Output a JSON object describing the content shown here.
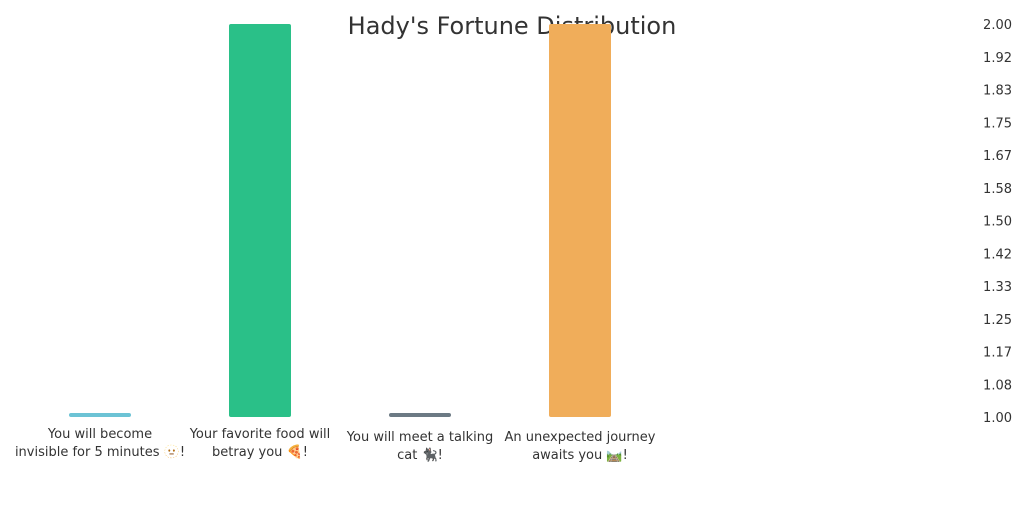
{
  "chart_data": {
    "type": "bar",
    "title": "Hady's Fortune Distribution",
    "categories": [
      "You will become invisible for 5 minutes 🫥!",
      "Your favorite food will betray you 🍕!",
      "You will meet a talking cat 🐈‍⬛!",
      "An unexpected journey awaits you 🛤️!"
    ],
    "category_lines": [
      [
        "You will become",
        "invisible for 5 minutes 🫥!"
      ],
      [
        "Your favorite food will",
        "betray you 🍕!"
      ],
      [
        "You will meet a talking",
        "cat 🐈‍⬛!"
      ],
      [
        "An unexpected journey",
        "awaits you 🛤️!"
      ]
    ],
    "values": [
      1,
      2,
      1,
      2
    ],
    "colors": [
      "#6cc3d5",
      "#2ac088",
      "#6c7a84",
      "#f0ad5a"
    ],
    "ylim": [
      1,
      2
    ],
    "yticks": [
      "1.00",
      "1.08",
      "1.17",
      "1.25",
      "1.33",
      "1.42",
      "1.50",
      "1.58",
      "1.67",
      "1.75",
      "1.83",
      "1.92",
      "2.00"
    ],
    "y_axis_position": "right",
    "grid": false,
    "xlabel": "",
    "ylabel": ""
  }
}
